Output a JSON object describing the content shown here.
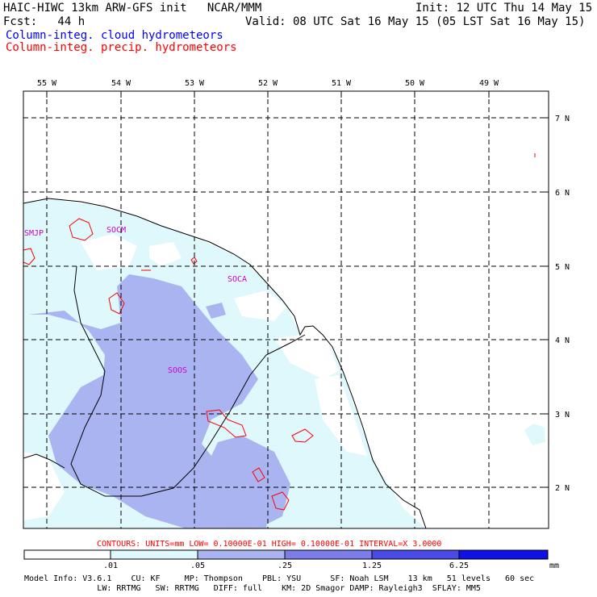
{
  "header": {
    "model_title": "HAIC-HIWC 13km ARW-GFS init   NCAR/MMM",
    "init": "Init: 12 UTC Thu 14 May 15",
    "fcst": "Fcst:   44 h",
    "valid": "Valid: 08 UTC Sat 16 May 15 (05 LST Sat 16 May 15)",
    "field_cloud": "Column-integ. cloud hydrometeors",
    "field_precip": "Column-integ. precip. hydrometeors"
  },
  "colors": {
    "cloud_text": "#0000ff",
    "precip_text": "#ff0000",
    "station_text": "#cc00cc",
    "shade_1": "#dff8fb",
    "shade_2": "#a9b4f0",
    "shade_3": "#7b7de8",
    "shade_4": "#4a4ae6",
    "shade_5": "#1010e8"
  },
  "lon_labels": [
    "55 W",
    "54 W",
    "53 W",
    "52 W",
    "51 W",
    "50 W",
    "49 W"
  ],
  "lat_labels": [
    "7 N",
    "6 N",
    "5 N",
    "4 N",
    "3 N",
    "2 N"
  ],
  "stations": [
    {
      "id": "SMJP"
    },
    {
      "id": "SOCM"
    },
    {
      "id": "SOCA"
    },
    {
      "id": "SOOS"
    }
  ],
  "contour_info": "CONTOURS:  UNITS=mm  LOW= 0.10000E-01  HIGH= 0.10000E-01  INTERVAL=X  3.0000",
  "colorbar": {
    "ticks": [
      ".01",
      ".05",
      ".25",
      "1.25",
      "6.25"
    ],
    "units": "mm"
  },
  "model_info": {
    "line1": "Model Info: V3.6.1    CU: KF     MP: Thompson    PBL: YSU      SF: Noah LSM    13 km   51 levels   60 sec",
    "line2": "               LW: RRTMG   SW: RRTMG   DIFF: full    KM: 2D Smagor DAMP: Rayleigh3  SFLAY: MM5"
  }
}
